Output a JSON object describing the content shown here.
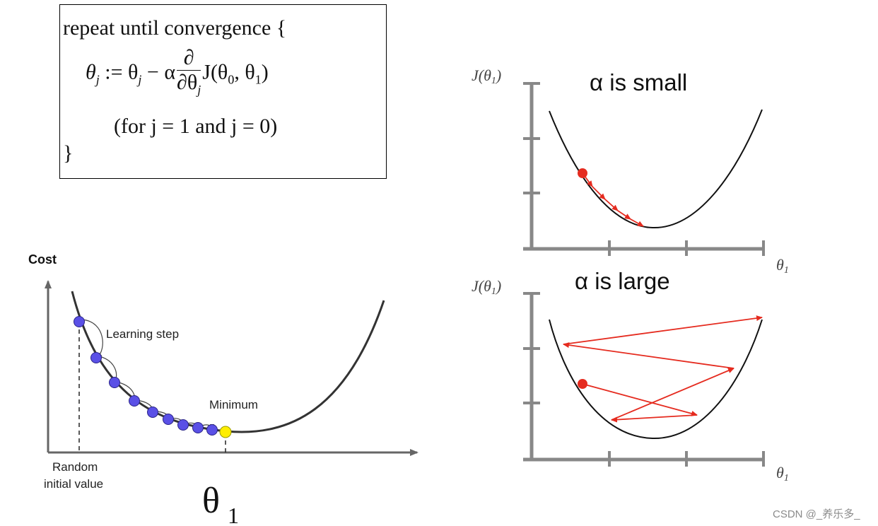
{
  "formula": {
    "line1": "repeat until convergence {",
    "update_lhs": "θ",
    "update_lhs_sub": "j",
    "assign": " := θ",
    "assign_sub": "j",
    "minus_alpha": " − α",
    "frac_num": "∂",
    "frac_den": "∂θ",
    "frac_den_sub": "j",
    "func": "J(θ",
    "func_sub0": "0",
    "func_mid": ", θ",
    "func_sub1": "1",
    "func_end": ")",
    "line3": "(for j = 1 and j = 0)",
    "line4": "}"
  },
  "left_plot": {
    "y_label": "Cost",
    "step_label": "Learning step",
    "min_label": "Minimum",
    "start_label_line1": "Random",
    "start_label_line2": "initial value",
    "x_symbol": "θ",
    "x_symbol_sub": "1",
    "dot_color": "#5a50e6",
    "min_dot_color": "#ffee00"
  },
  "right_top": {
    "y_label": "J(θ",
    "y_label_sub": "1",
    "y_label_end": ")",
    "title": "α is small",
    "x_label": "θ",
    "x_label_sub": "1",
    "accent": "#e52b1f"
  },
  "right_bottom": {
    "y_label": "J(θ",
    "y_label_sub": "1",
    "y_label_end": ")",
    "title": "α is large",
    "x_label": "θ",
    "x_label_sub": "1",
    "accent": "#e52b1f"
  },
  "watermark": "CSDN @_养乐多_"
}
